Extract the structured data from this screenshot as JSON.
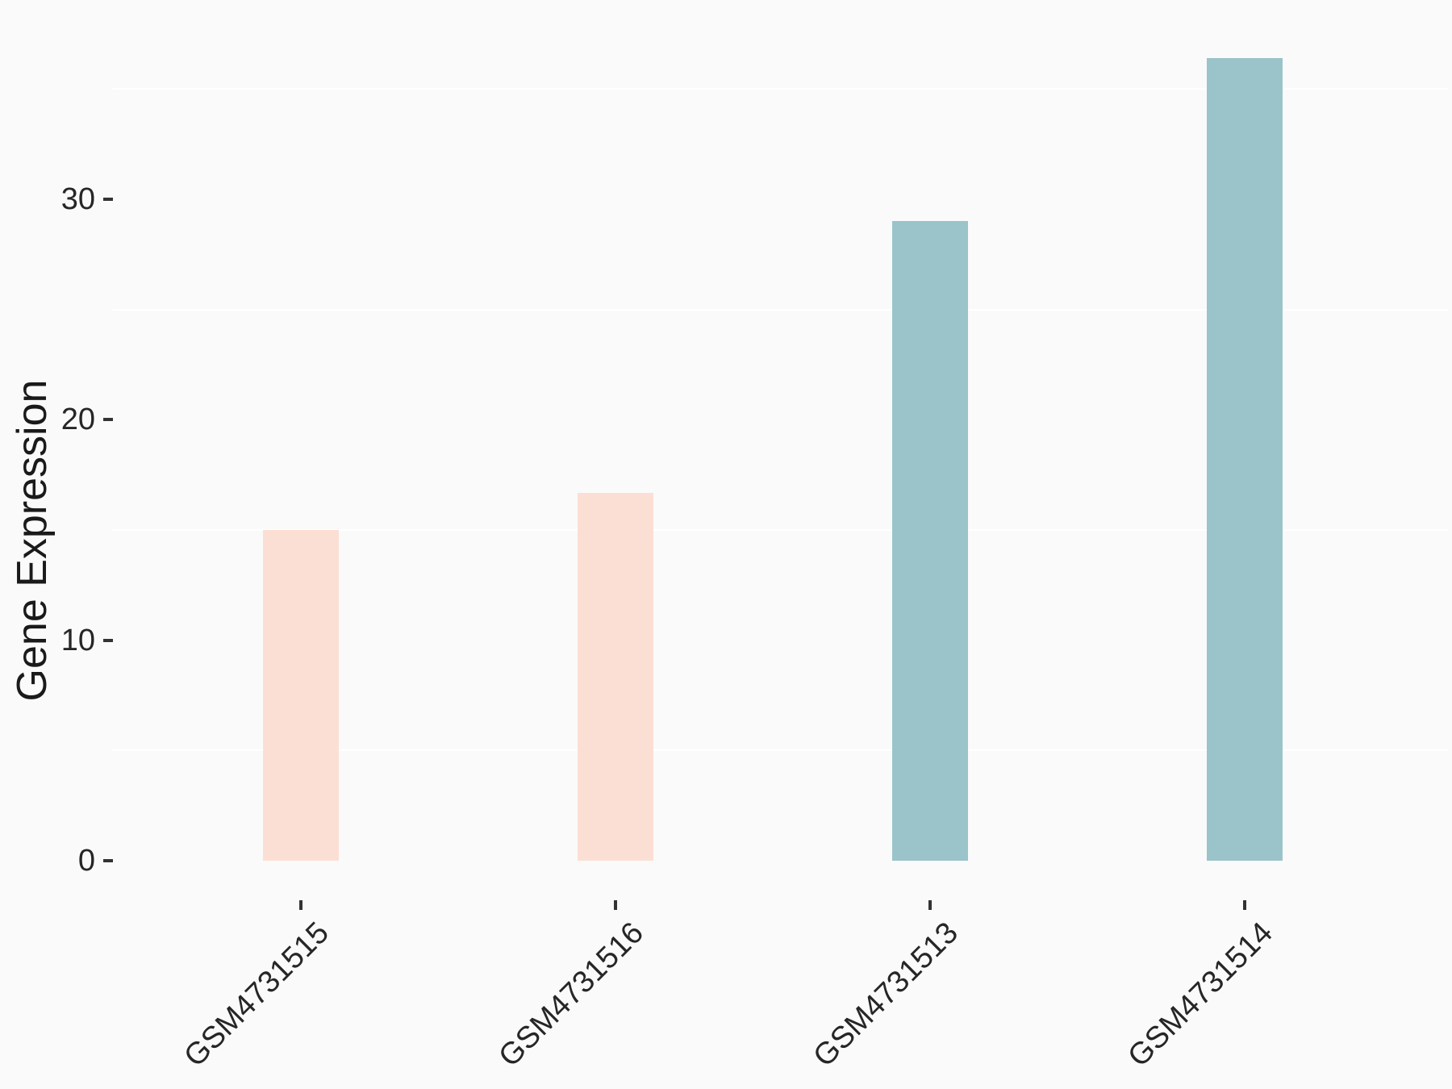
{
  "chart_data": {
    "type": "bar",
    "categories": [
      "GSM4731515",
      "GSM4731516",
      "GSM4731513",
      "GSM4731514"
    ],
    "values": [
      15.0,
      16.7,
      29.0,
      36.4
    ],
    "bar_colors": [
      "#fcdfd4",
      "#fcdfd4",
      "#9ac4c9",
      "#9ac4c9"
    ],
    "title": "",
    "xlabel": "",
    "ylabel": "Gene Expression",
    "ylim": [
      0,
      36.5
    ],
    "yticks": [
      0,
      10,
      20,
      30
    ],
    "minor_gridlines": [
      5,
      15,
      25,
      35
    ],
    "grid": "minor-only",
    "legend_position": "none",
    "background_color": "#fafafa",
    "gridline_color": "#ffffff",
    "tick_color": "#333333",
    "text_color": "#262626"
  }
}
